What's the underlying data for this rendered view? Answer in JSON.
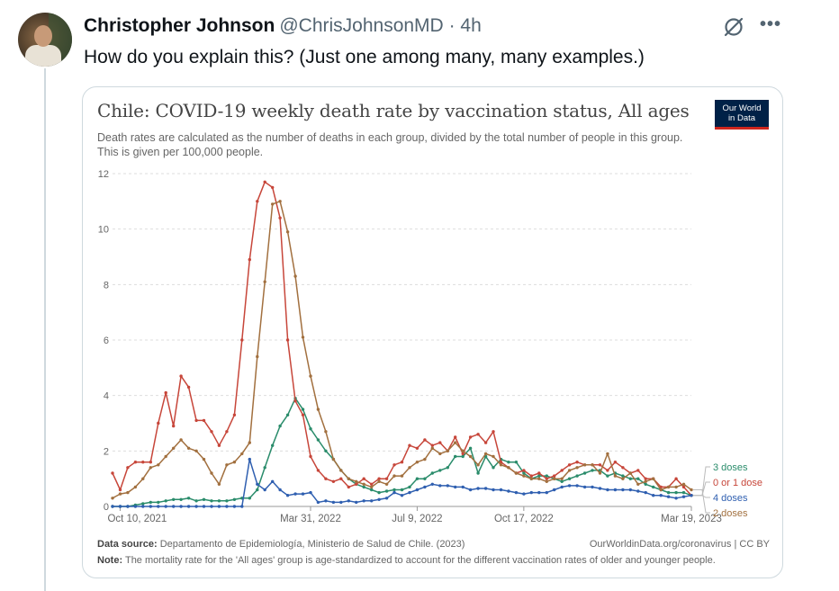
{
  "tweet": {
    "author_name": "Christopher Johnson",
    "handle": "@ChrisJohnsonMD",
    "separator": "·",
    "time": "4h",
    "text": "How do you explain this? (Just one among many, many examples.)"
  },
  "icons": {
    "grok": "grok-icon",
    "more": "more-icon",
    "more_glyph": "•••"
  },
  "card": {
    "logo_line1": "Our World",
    "logo_line2": "in Data",
    "source_label": "Data source:",
    "source_text": "Departamento de Epidemiología, Ministerio de Salud de Chile. (2023)",
    "source_url": "OurWorldinData.org/coronavirus | CC BY",
    "note_label": "Note:",
    "note_text": "The mortality rate for the 'All ages' group is age-standardized to account for the different vaccination rates of older and younger people."
  },
  "chart_data": {
    "type": "line",
    "title": "Chile: COVID-19 weekly death rate by vaccination status, All ages",
    "subtitle": "Death rates are calculated as the number of deaths in each group, divided by the total number of people in this group. This is given per 100,000 people.",
    "xlabel": "",
    "ylabel": "",
    "ylim": [
      0,
      12
    ],
    "yticks": [
      0,
      2,
      4,
      6,
      8,
      10,
      12
    ],
    "x_tick_labels": [
      "Oct 10, 2021",
      "Mar 31, 2022",
      "Jul 9, 2022",
      "Oct 17, 2022",
      "Mar 19, 2023"
    ],
    "x_tick_weeks": [
      1,
      26,
      40,
      54,
      76
    ],
    "weeks": 77,
    "series": [
      {
        "name": "3 doses",
        "color": "#2a8c6b",
        "values": [
          0.0,
          0.0,
          0.0,
          0.05,
          0.1,
          0.15,
          0.15,
          0.2,
          0.25,
          0.25,
          0.3,
          0.2,
          0.25,
          0.2,
          0.2,
          0.2,
          0.25,
          0.3,
          0.3,
          0.6,
          1.4,
          2.2,
          2.9,
          3.3,
          3.9,
          3.5,
          2.8,
          2.4,
          2.0,
          1.7,
          1.3,
          1.0,
          0.8,
          0.7,
          0.6,
          0.5,
          0.55,
          0.6,
          0.6,
          0.7,
          1.0,
          1.0,
          1.2,
          1.3,
          1.4,
          1.8,
          1.8,
          2.1,
          1.2,
          1.8,
          1.4,
          1.7,
          1.6,
          1.6,
          1.2,
          1.0,
          1.1,
          1.1,
          1.0,
          0.9,
          1.0,
          1.1,
          1.2,
          1.3,
          1.3,
          1.1,
          1.2,
          1.1,
          1.0,
          1.0,
          0.8,
          0.7,
          0.6,
          0.5,
          0.5,
          0.5,
          0.4
        ]
      },
      {
        "name": "0 or 1 dose",
        "color": "#c7463a",
        "values": [
          1.2,
          0.6,
          1.4,
          1.6,
          1.6,
          1.6,
          3.0,
          4.1,
          2.9,
          4.7,
          4.3,
          3.1,
          3.1,
          2.7,
          2.2,
          2.7,
          3.3,
          6.0,
          8.9,
          11.0,
          11.7,
          11.5,
          10.4,
          6.0,
          3.8,
          3.3,
          1.8,
          1.3,
          1.0,
          0.9,
          1.0,
          0.7,
          0.8,
          1.0,
          0.8,
          1.0,
          1.0,
          1.5,
          1.6,
          2.2,
          2.1,
          2.4,
          2.2,
          2.3,
          2.0,
          2.5,
          1.9,
          2.5,
          2.6,
          2.3,
          2.7,
          1.6,
          1.4,
          1.2,
          1.3,
          1.1,
          1.2,
          1.0,
          1.1,
          1.3,
          1.5,
          1.6,
          1.5,
          1.5,
          1.5,
          1.3,
          1.6,
          1.4,
          1.2,
          1.3,
          1.0,
          1.0,
          0.7,
          0.7,
          1.0,
          0.7,
          0.4
        ]
      },
      {
        "name": "4 doses",
        "color": "#2f5fb0",
        "values": [
          0.0,
          0.0,
          0.0,
          0.0,
          0.0,
          0.0,
          0.0,
          0.0,
          0.0,
          0.0,
          0.0,
          0.0,
          0.0,
          0.0,
          0.0,
          0.0,
          0.0,
          0.0,
          1.7,
          0.8,
          0.6,
          0.9,
          0.6,
          0.4,
          0.45,
          0.45,
          0.5,
          0.15,
          0.2,
          0.15,
          0.15,
          0.2,
          0.15,
          0.2,
          0.2,
          0.25,
          0.3,
          0.5,
          0.4,
          0.5,
          0.6,
          0.7,
          0.8,
          0.75,
          0.75,
          0.7,
          0.7,
          0.6,
          0.65,
          0.65,
          0.6,
          0.6,
          0.55,
          0.5,
          0.45,
          0.5,
          0.5,
          0.5,
          0.6,
          0.7,
          0.75,
          0.75,
          0.7,
          0.7,
          0.65,
          0.6,
          0.6,
          0.6,
          0.6,
          0.55,
          0.5,
          0.4,
          0.4,
          0.35,
          0.3,
          0.35,
          0.4
        ]
      },
      {
        "name": "2 doses",
        "color": "#a2703f",
        "values": [
          0.3,
          0.45,
          0.5,
          0.7,
          1.0,
          1.4,
          1.5,
          1.8,
          2.1,
          2.4,
          2.1,
          2.0,
          1.7,
          1.2,
          0.8,
          1.5,
          1.6,
          1.9,
          2.3,
          5.4,
          8.1,
          10.9,
          11.0,
          9.9,
          8.3,
          6.1,
          4.7,
          3.5,
          2.7,
          1.7,
          1.3,
          1.0,
          0.9,
          0.8,
          0.7,
          0.9,
          0.8,
          1.1,
          1.1,
          1.4,
          1.6,
          1.7,
          2.1,
          1.9,
          2.0,
          2.3,
          2.0,
          1.8,
          1.5,
          1.9,
          1.8,
          1.5,
          1.4,
          1.2,
          1.1,
          1.0,
          1.0,
          0.9,
          1.0,
          1.0,
          1.3,
          1.4,
          1.5,
          1.5,
          1.2,
          1.9,
          1.1,
          1.0,
          1.2,
          0.8,
          0.9,
          1.0,
          0.6,
          0.7,
          0.7,
          0.8,
          0.6
        ]
      }
    ],
    "legend_order": [
      "3 doses",
      "0 or 1 dose",
      "4 doses",
      "2 doses"
    ],
    "legend_placement": "right"
  }
}
